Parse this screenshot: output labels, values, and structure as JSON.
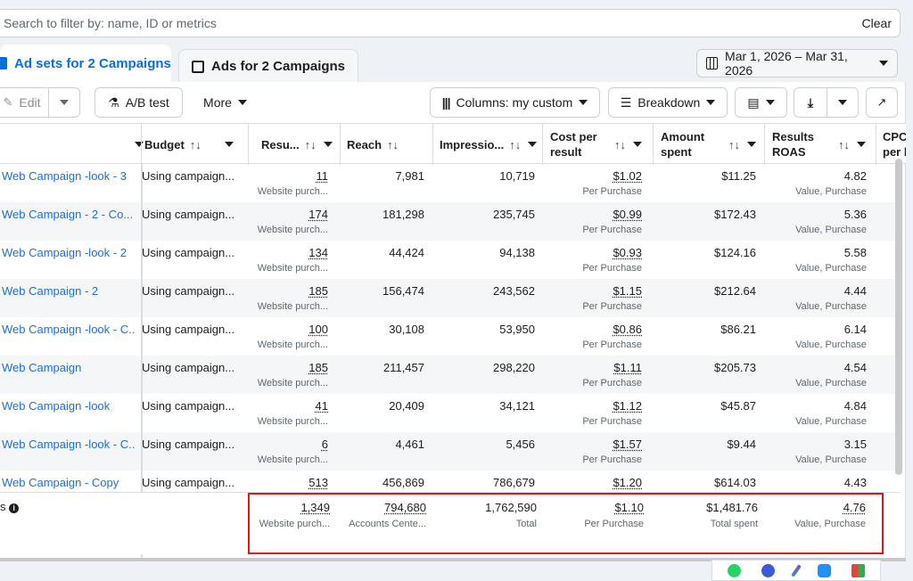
{
  "search": {
    "placeholder": "Search to filter by: name, ID or metrics",
    "clear_label": "Clear"
  },
  "tabs": [
    {
      "label": "Ad sets for 2 Campaigns",
      "active": true
    },
    {
      "label": "Ads for 2 Campaigns",
      "active": false
    }
  ],
  "date_range": "Mar 1, 2026 – Mar 31, 2026",
  "toolbar": {
    "edit_label": "Edit",
    "ab_test_label": "A/B test",
    "more_label": "More",
    "columns_label": "Columns: my custom",
    "breakdown_label": "Breakdown"
  },
  "columns": {
    "budget": "Budget",
    "results": "Resu...",
    "reach": "Reach",
    "impressions": "Impressio...",
    "cost_per_result_1": "Cost per",
    "cost_per_result_2": "result",
    "amount_spent_1": "Amount",
    "amount_spent_2": "spent",
    "roas_1": "Results",
    "roas_2": "ROAS",
    "cpc_1": "CPC",
    "cpc_2": "per l"
  },
  "rows": [
    {
      "name": "Web Campaign -look - 3",
      "budget": "Using campaign...",
      "results": "11",
      "results_sub": "Website purch...",
      "reach": "7,981",
      "impressions": "10,719",
      "cpr": "$1.02",
      "cpr_sub": "Per Purchase",
      "spent": "$11.25",
      "roas": "4.82",
      "roas_sub": "Value, Purchase"
    },
    {
      "name": "Web Campaign - 2 - Co...",
      "budget": "Using campaign...",
      "results": "174",
      "results_sub": "Website purch...",
      "reach": "181,298",
      "impressions": "235,745",
      "cpr": "$0.99",
      "cpr_sub": "Per Purchase",
      "spent": "$172.43",
      "roas": "5.36",
      "roas_sub": "Value, Purchase"
    },
    {
      "name": "Web Campaign -look - 2",
      "budget": "Using campaign...",
      "results": "134",
      "results_sub": "Website purch...",
      "reach": "44,424",
      "impressions": "94,138",
      "cpr": "$0.93",
      "cpr_sub": "Per Purchase",
      "spent": "$124.16",
      "roas": "5.58",
      "roas_sub": "Value, Purchase"
    },
    {
      "name": "Web Campaign - 2",
      "budget": "Using campaign...",
      "results": "185",
      "results_sub": "Website purch...",
      "reach": "156,474",
      "impressions": "243,562",
      "cpr": "$1.15",
      "cpr_sub": "Per Purchase",
      "spent": "$212.64",
      "roas": "4.44",
      "roas_sub": "Value, Purchase"
    },
    {
      "name": "Web Campaign -look - C...",
      "budget": "Using campaign...",
      "results": "100",
      "results_sub": "Website purch...",
      "reach": "30,108",
      "impressions": "53,950",
      "cpr": "$0.86",
      "cpr_sub": "Per Purchase",
      "spent": "$86.21",
      "roas": "6.14",
      "roas_sub": "Value, Purchase"
    },
    {
      "name": "Web Campaign",
      "budget": "Using campaign...",
      "results": "185",
      "results_sub": "Website purch...",
      "reach": "211,457",
      "impressions": "298,220",
      "cpr": "$1.11",
      "cpr_sub": "Per Purchase",
      "spent": "$205.73",
      "roas": "4.54",
      "roas_sub": "Value, Purchase"
    },
    {
      "name": "Web Campaign -look",
      "budget": "Using campaign...",
      "results": "41",
      "results_sub": "Website purch...",
      "reach": "20,409",
      "impressions": "34,121",
      "cpr": "$1.12",
      "cpr_sub": "Per Purchase",
      "spent": "$45.87",
      "roas": "4.84",
      "roas_sub": "Value, Purchase"
    },
    {
      "name": "Web Campaign -look - C...",
      "budget": "Using campaign...",
      "results": "6",
      "results_sub": "Website purch...",
      "reach": "4,461",
      "impressions": "5,456",
      "cpr": "$1.57",
      "cpr_sub": "Per Purchase",
      "spent": "$9.44",
      "roas": "3.15",
      "roas_sub": "Value, Purchase"
    },
    {
      "name": "Web Campaign - Copy",
      "budget": "Using campaign...",
      "results": "513",
      "results_sub": "",
      "reach": "456,869",
      "impressions": "786,679",
      "cpr": "$1.20",
      "cpr_sub": "",
      "spent": "$614.03",
      "roas": "4.43",
      "roas_sub": ""
    }
  ],
  "totals": {
    "label": "s",
    "results": "1,349",
    "results_sub": "Website purch...",
    "reach": "794,680",
    "reach_sub": "Accounts Cente...",
    "impressions": "1,762,590",
    "impressions_sub": "Total",
    "cpr": "$1.10",
    "cpr_sub": "Per Purchase",
    "spent": "$1,481.76",
    "spent_sub": "Total spent",
    "roas": "4.76",
    "roas_sub": "Value, Purchase"
  },
  "colors": {
    "accent": "#0a6fd8",
    "link": "#1d6fd6",
    "highlight": "#e0141e"
  },
  "tray_icons": [
    "whatsapp-icon",
    "messenger-icon",
    "pen-icon",
    "security-icon",
    "app-icon"
  ]
}
